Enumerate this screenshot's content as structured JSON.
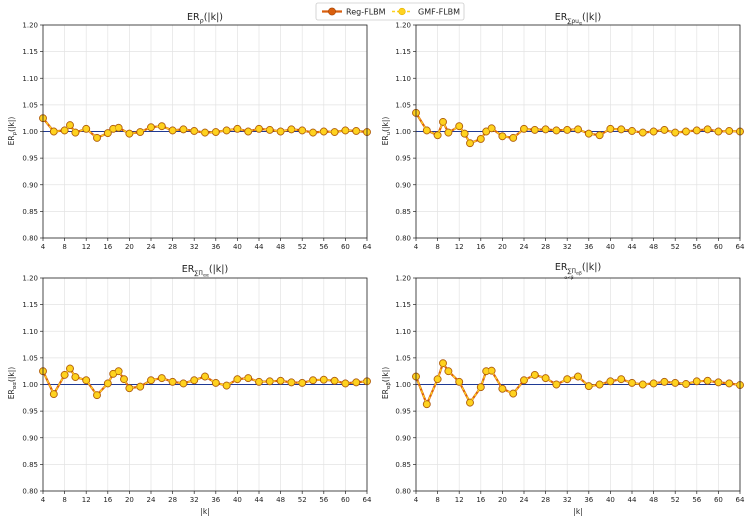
{
  "legend": {
    "position": "top-center",
    "entries": [
      {
        "label": "Reg-FLBM",
        "color": "#d95f0e",
        "marker": "#d95f0e"
      },
      {
        "label": "GMF-FLBM",
        "color": "#ffd21f",
        "marker": "#ffd21f"
      }
    ]
  },
  "colors": {
    "reference_line": "#1f3a93",
    "grid": "#e3e3e3",
    "axis": "#222222",
    "marker_edge": "#b8860b"
  },
  "chart_data": [
    {
      "type": "line",
      "title": "ER_ρ(|k|)",
      "title_parts": {
        "base": "ER",
        "sub": "ρ",
        "arg": "(|k|)"
      },
      "xlabel": "",
      "ylabel": "ER_ρ(|k|)",
      "ylabel_parts": {
        "base": "ER",
        "sub": "ρ",
        "arg": "(|k|)"
      },
      "xlim": [
        4,
        64
      ],
      "ylim": [
        0.8,
        1.2
      ],
      "xticks": [
        4,
        8,
        12,
        16,
        20,
        24,
        28,
        32,
        36,
        40,
        44,
        48,
        52,
        56,
        60,
        64
      ],
      "yticks": [
        0.8,
        0.85,
        0.9,
        0.95,
        1.0,
        1.05,
        1.1,
        1.15,
        1.2
      ],
      "ytick_labels": [
        "0.80",
        "0.85",
        "0.90",
        "0.95",
        "1.00",
        "1.05",
        "1.10",
        "1.15",
        "1.20"
      ],
      "reference": 1.0,
      "x": [
        4,
        6,
        8,
        9,
        10,
        12,
        14,
        16,
        17,
        18,
        20,
        22,
        24,
        26,
        28,
        30,
        32,
        34,
        36,
        38,
        40,
        42,
        44,
        46,
        48,
        50,
        52,
        54,
        56,
        58,
        60,
        62,
        64
      ],
      "series": [
        {
          "name": "Reg-FLBM",
          "values": [
            1.025,
            1.0,
            1.002,
            1.012,
            0.998,
            1.005,
            0.988,
            0.997,
            1.005,
            1.007,
            0.996,
            0.999,
            1.008,
            1.01,
            1.002,
            1.004,
            1.001,
            0.998,
            0.999,
            1.002,
            1.005,
            1.0,
            1.005,
            1.003,
            1.0,
            1.004,
            1.002,
            0.998,
            1.0,
            0.999,
            1.002,
            1.001,
            0.999
          ]
        },
        {
          "name": "GMF-FLBM",
          "values": [
            1.025,
            1.0,
            1.002,
            1.012,
            0.998,
            1.005,
            0.988,
            0.997,
            1.005,
            1.007,
            0.996,
            0.999,
            1.008,
            1.01,
            1.002,
            1.004,
            1.001,
            0.998,
            0.999,
            1.002,
            1.005,
            1.0,
            1.005,
            1.003,
            1.0,
            1.004,
            1.002,
            0.998,
            1.0,
            0.999,
            1.002,
            1.001,
            0.999
          ]
        }
      ]
    },
    {
      "type": "line",
      "title": "ER_Σρu_α(|k|)",
      "title_parts": {
        "base": "ER",
        "sub": "∑ρu",
        "subsub": "α",
        "arg": "(|k|)"
      },
      "xlabel": "",
      "ylabel": "ER_u(|k|)",
      "ylabel_parts": {
        "base": "ER",
        "sub": "u",
        "arg": "(|k|)"
      },
      "xlim": [
        4,
        64
      ],
      "ylim": [
        0.8,
        1.2
      ],
      "xticks": [
        4,
        8,
        12,
        16,
        20,
        24,
        28,
        32,
        36,
        40,
        44,
        48,
        52,
        56,
        60,
        64
      ],
      "yticks": [
        0.8,
        0.85,
        0.9,
        0.95,
        1.0,
        1.05,
        1.1,
        1.15,
        1.2
      ],
      "ytick_labels": [
        "0.80",
        "0.85",
        "0.90",
        "0.95",
        "1.00",
        "1.05",
        "1.10",
        "1.15",
        "1.20"
      ],
      "reference": 1.0,
      "x": [
        4,
        6,
        8,
        9,
        10,
        12,
        13,
        14,
        16,
        17,
        18,
        20,
        22,
        24,
        26,
        28,
        30,
        32,
        34,
        36,
        38,
        40,
        42,
        44,
        46,
        48,
        50,
        52,
        54,
        56,
        58,
        60,
        62,
        64
      ],
      "series": [
        {
          "name": "Reg-FLBM",
          "values": [
            1.035,
            1.002,
            0.993,
            1.018,
            0.998,
            1.01,
            0.996,
            0.978,
            0.986,
            1.0,
            1.006,
            0.991,
            0.988,
            1.005,
            1.003,
            1.004,
            1.002,
            1.003,
            1.004,
            0.996,
            0.993,
            1.005,
            1.004,
            1.001,
            0.998,
            1.0,
            1.003,
            0.998,
            1.0,
            1.002,
            1.004,
            1.0,
            1.001,
            1.0
          ]
        },
        {
          "name": "GMF-FLBM",
          "values": [
            1.035,
            1.002,
            0.993,
            1.018,
            0.998,
            1.01,
            0.996,
            0.978,
            0.986,
            1.0,
            1.006,
            0.991,
            0.988,
            1.005,
            1.003,
            1.004,
            1.002,
            1.003,
            1.004,
            0.996,
            0.993,
            1.005,
            1.004,
            1.001,
            0.998,
            1.0,
            1.003,
            0.998,
            1.0,
            1.002,
            1.004,
            1.0,
            1.001,
            1.0
          ]
        }
      ]
    },
    {
      "type": "line",
      "title": "ER_ΣΠ_αα(|k|)",
      "title_parts": {
        "base": "ER",
        "sub": "∑Π",
        "subsub": "αα",
        "arg": "(|k|)"
      },
      "xlabel": "|k|",
      "ylabel": "ER_αα(|k|)",
      "ylabel_parts": {
        "base": "ER",
        "sub": "αα",
        "arg": "(|k|)"
      },
      "xlim": [
        4,
        64
      ],
      "ylim": [
        0.8,
        1.2
      ],
      "xticks": [
        4,
        8,
        12,
        16,
        20,
        24,
        28,
        32,
        36,
        40,
        44,
        48,
        52,
        56,
        60,
        64
      ],
      "yticks": [
        0.8,
        0.85,
        0.9,
        0.95,
        1.0,
        1.05,
        1.1,
        1.15,
        1.2
      ],
      "ytick_labels": [
        "0.80",
        "0.85",
        "0.90",
        "0.95",
        "1.00",
        "1.05",
        "1.10",
        "1.15",
        "1.20"
      ],
      "reference": 1.0,
      "x": [
        4,
        6,
        8,
        9,
        10,
        12,
        14,
        16,
        17,
        18,
        19,
        20,
        22,
        24,
        26,
        28,
        30,
        32,
        34,
        36,
        38,
        40,
        42,
        44,
        46,
        48,
        50,
        52,
        54,
        56,
        58,
        60,
        62,
        64
      ],
      "series": [
        {
          "name": "Reg-FLBM",
          "values": [
            1.025,
            0.982,
            1.018,
            1.03,
            1.014,
            1.008,
            0.98,
            1.002,
            1.02,
            1.025,
            1.01,
            0.993,
            0.996,
            1.008,
            1.012,
            1.005,
            1.002,
            1.008,
            1.015,
            1.003,
            0.998,
            1.01,
            1.012,
            1.005,
            1.006,
            1.007,
            1.004,
            1.003,
            1.008,
            1.009,
            1.007,
            1.002,
            1.004,
            1.006
          ]
        },
        {
          "name": "GMF-FLBM",
          "values": [
            1.025,
            0.982,
            1.018,
            1.03,
            1.014,
            1.008,
            0.98,
            1.002,
            1.02,
            1.025,
            1.01,
            0.993,
            0.996,
            1.008,
            1.012,
            1.005,
            1.002,
            1.008,
            1.015,
            1.003,
            0.998,
            1.01,
            1.012,
            1.005,
            1.006,
            1.007,
            1.004,
            1.003,
            1.008,
            1.009,
            1.007,
            1.002,
            1.004,
            1.006
          ]
        }
      ]
    },
    {
      "type": "line",
      "title": "ER_ΣΠ_αβ(|k|)",
      "title_parts": {
        "base": "ER",
        "sub": "∑Π",
        "subsub": "αβ",
        "under": "α<β",
        "arg": "(|k|)"
      },
      "xlabel": "|k|",
      "ylabel": "ER_αβ(|k|)",
      "ylabel_parts": {
        "base": "ER",
        "sub": "αβ",
        "arg": "(|k|)"
      },
      "xlim": [
        4,
        64
      ],
      "ylim": [
        0.8,
        1.2
      ],
      "xticks": [
        4,
        8,
        12,
        16,
        20,
        24,
        28,
        32,
        36,
        40,
        44,
        48,
        52,
        56,
        60,
        64
      ],
      "yticks": [
        0.8,
        0.85,
        0.9,
        0.95,
        1.0,
        1.05,
        1.1,
        1.15,
        1.2
      ],
      "ytick_labels": [
        "0.80",
        "0.85",
        "0.90",
        "0.95",
        "1.00",
        "1.05",
        "1.10",
        "1.15",
        "1.20"
      ],
      "reference": 1.0,
      "x": [
        4,
        6,
        8,
        9,
        10,
        12,
        14,
        16,
        17,
        18,
        20,
        22,
        24,
        26,
        28,
        30,
        32,
        34,
        36,
        38,
        40,
        42,
        44,
        46,
        48,
        50,
        52,
        54,
        56,
        58,
        60,
        62,
        64
      ],
      "series": [
        {
          "name": "Reg-FLBM",
          "values": [
            1.015,
            0.963,
            1.01,
            1.04,
            1.025,
            1.005,
            0.966,
            0.995,
            1.025,
            1.026,
            0.992,
            0.983,
            1.008,
            1.018,
            1.012,
            1.0,
            1.01,
            1.015,
            0.997,
            1.0,
            1.006,
            1.01,
            1.003,
            1.0,
            1.002,
            1.005,
            1.003,
            1.001,
            1.006,
            1.007,
            1.004,
            1.002,
            0.999
          ]
        },
        {
          "name": "GMF-FLBM",
          "values": [
            1.015,
            0.963,
            1.01,
            1.04,
            1.025,
            1.005,
            0.966,
            0.995,
            1.025,
            1.026,
            0.992,
            0.983,
            1.008,
            1.018,
            1.012,
            1.0,
            1.01,
            1.015,
            0.997,
            1.0,
            1.006,
            1.01,
            1.003,
            1.0,
            1.002,
            1.005,
            1.003,
            1.001,
            1.006,
            1.007,
            1.004,
            1.002,
            0.999
          ]
        }
      ]
    }
  ]
}
